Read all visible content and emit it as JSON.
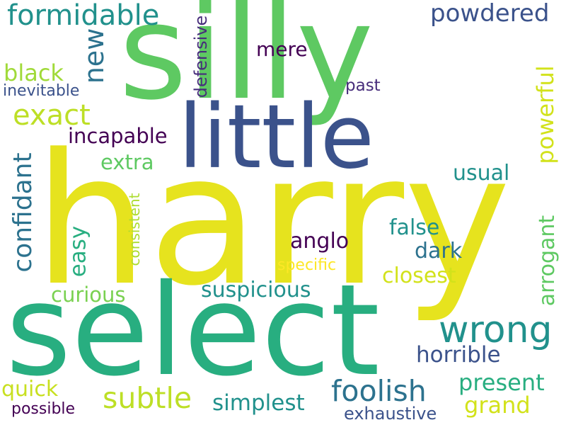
{
  "words": [
    {
      "text": "harry",
      "color": "#e6e31e",
      "rotated": false
    },
    {
      "text": "silly",
      "color": "#5ec962",
      "rotated": false
    },
    {
      "text": "select",
      "color": "#28ae80",
      "rotated": false
    },
    {
      "text": "little",
      "color": "#3b528b",
      "rotated": false
    },
    {
      "text": "formidable",
      "color": "#21918c",
      "rotated": false
    },
    {
      "text": "powdered",
      "color": "#3b528b",
      "rotated": false
    },
    {
      "text": "wrong",
      "color": "#21918c",
      "rotated": false
    },
    {
      "text": "foolish",
      "color": "#2c728e",
      "rotated": false
    },
    {
      "text": "new",
      "color": "#2c728e",
      "rotated": true
    },
    {
      "text": "exact",
      "color": "#bddf26",
      "rotated": false
    },
    {
      "text": "black",
      "color": "#a0da39",
      "rotated": false
    },
    {
      "text": "inevitable",
      "color": "#3b528b",
      "rotated": false
    },
    {
      "text": "mere",
      "color": "#440154",
      "rotated": false
    },
    {
      "text": "defensive",
      "color": "#472d7b",
      "rotated": true
    },
    {
      "text": "past",
      "color": "#472d7b",
      "rotated": false
    },
    {
      "text": "powerful",
      "color": "#d2e21b",
      "rotated": true
    },
    {
      "text": "incapable",
      "color": "#440154",
      "rotated": false
    },
    {
      "text": "confidant",
      "color": "#2c728e",
      "rotated": true
    },
    {
      "text": "extra",
      "color": "#5ec962",
      "rotated": false
    },
    {
      "text": "usual",
      "color": "#21918c",
      "rotated": false
    },
    {
      "text": "easy",
      "color": "#28ae80",
      "rotated": true
    },
    {
      "text": "consistent",
      "color": "#addc30",
      "rotated": true
    },
    {
      "text": "anglo",
      "color": "#440154",
      "rotated": false
    },
    {
      "text": "false",
      "color": "#21918c",
      "rotated": false
    },
    {
      "text": "dark",
      "color": "#2c728e",
      "rotated": false
    },
    {
      "text": "arrogant",
      "color": "#5ec962",
      "rotated": true
    },
    {
      "text": "specific",
      "color": "#fde725",
      "rotated": false
    },
    {
      "text": "closest",
      "color": "#d2e21b",
      "rotated": false
    },
    {
      "text": "curious",
      "color": "#7ad151",
      "rotated": false
    },
    {
      "text": "suspicious",
      "color": "#21918c",
      "rotated": false
    },
    {
      "text": "horrible",
      "color": "#3b528b",
      "rotated": false
    },
    {
      "text": "present",
      "color": "#28ae80",
      "rotated": false
    },
    {
      "text": "subtle",
      "color": "#bddf26",
      "rotated": false
    },
    {
      "text": "quick",
      "color": "#c8e020",
      "rotated": false
    },
    {
      "text": "possible",
      "color": "#440154",
      "rotated": false
    },
    {
      "text": "simplest",
      "color": "#21918c",
      "rotated": false
    },
    {
      "text": "exhaustive",
      "color": "#3b528b",
      "rotated": false
    },
    {
      "text": "grand",
      "color": "#d2e21b",
      "rotated": false
    }
  ]
}
